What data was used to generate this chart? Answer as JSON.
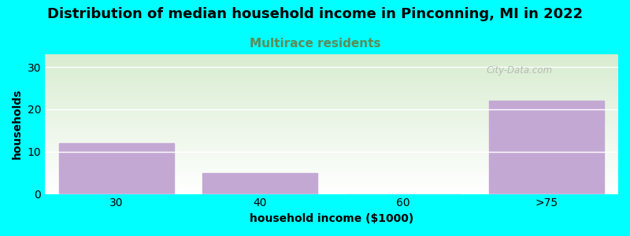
{
  "title": "Distribution of median household income in Pinconning, MI in 2022",
  "subtitle": "Multirace residents",
  "xlabel": "household income ($1000)",
  "ylabel": "households",
  "categories": [
    "30",
    "40",
    "60",
    ">75"
  ],
  "values": [
    12,
    5,
    0,
    22
  ],
  "bar_color": "#c4a8d4",
  "background_color": "#00ffff",
  "plot_bg_gradient_top": "#d8ecd0",
  "plot_bg_gradient_bottom": "#ffffff",
  "ylim": [
    0,
    33
  ],
  "yticks": [
    0,
    10,
    20,
    30
  ],
  "title_fontsize": 13,
  "subtitle_fontsize": 11,
  "subtitle_color": "#5b8c5a",
  "axis_label_fontsize": 10,
  "watermark": "City-Data.com"
}
